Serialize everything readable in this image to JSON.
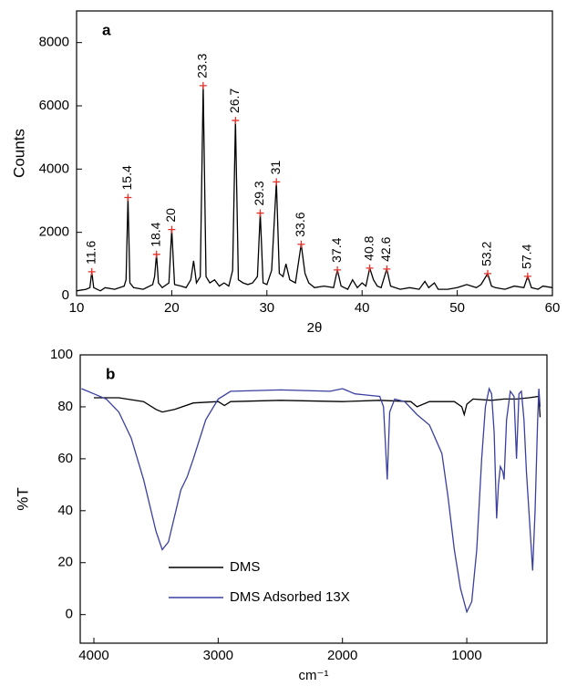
{
  "chart_data": [
    {
      "type": "line",
      "panel_label": "a",
      "x_label": "2θ",
      "y_label": "Counts",
      "xlim": [
        10,
        60
      ],
      "ylim": [
        0,
        9000
      ],
      "xticks": [
        10,
        20,
        30,
        40,
        50,
        60
      ],
      "yticks": [
        0,
        2000,
        4000,
        6000,
        8000
      ],
      "series": [
        {
          "color": "#000000",
          "x": [
            10,
            11,
            11.4,
            11.6,
            11.8,
            12.5,
            13,
            14,
            15,
            15.2,
            15.4,
            15.6,
            16,
            17,
            18,
            18.2,
            18.4,
            18.6,
            19,
            19.7,
            20,
            20.3,
            21,
            21.5,
            22,
            22.3,
            22.6,
            23,
            23.3,
            23.6,
            24,
            24.5,
            25,
            25.5,
            26,
            26.4,
            26.7,
            27,
            27.5,
            28,
            28.5,
            29,
            29.3,
            29.6,
            30,
            30.5,
            31,
            31.3,
            31.7,
            32,
            32.4,
            33,
            33.6,
            34,
            34.4,
            35,
            36,
            37,
            37.4,
            37.8,
            38.5,
            39,
            39.5,
            40,
            40.4,
            40.8,
            41.2,
            41.6,
            42,
            42.6,
            43,
            44,
            45,
            46,
            46.6,
            47,
            47.6,
            48,
            49,
            50,
            51,
            52,
            52.5,
            53.2,
            53.6,
            54,
            55,
            56,
            57,
            57.4,
            57.8,
            58.5,
            59,
            60
          ],
          "values": [
            150,
            200,
            250,
            754,
            250,
            150,
            250,
            200,
            300,
            500,
            3101,
            400,
            250,
            200,
            350,
            600,
            1304,
            400,
            250,
            400,
            2087,
            350,
            300,
            250,
            500,
            1100,
            400,
            600,
            6638,
            600,
            400,
            500,
            300,
            400,
            300,
            800,
            5536,
            500,
            400,
            350,
            400,
            600,
            2609,
            400,
            350,
            800,
            3594,
            700,
            600,
            1000,
            500,
            400,
            1623,
            700,
            400,
            250,
            300,
            250,
            812,
            300,
            200,
            500,
            250,
            400,
            300,
            870,
            500,
            300,
            250,
            840,
            300,
            200,
            250,
            200,
            450,
            250,
            400,
            200,
            200,
            250,
            350,
            250,
            350,
            696,
            300,
            250,
            200,
            300,
            250,
            609,
            250,
            200,
            300,
            250
          ]
        }
      ],
      "peak_color": "#e8302a",
      "peaks": [
        {
          "x": 11.6,
          "y": 754
        },
        {
          "x": 15.4,
          "y": 3101
        },
        {
          "x": 18.4,
          "y": 1304
        },
        {
          "x": 20,
          "y": 2087
        },
        {
          "x": 23.3,
          "y": 6638
        },
        {
          "x": 26.7,
          "y": 5536
        },
        {
          "x": 29.3,
          "y": 2609
        },
        {
          "x": 31,
          "y": 3594
        },
        {
          "x": 33.6,
          "y": 1623
        },
        {
          "x": 37.4,
          "y": 812
        },
        {
          "x": 40.8,
          "y": 870
        },
        {
          "x": 42.6,
          "y": 840
        },
        {
          "x": 53.2,
          "y": 696
        },
        {
          "x": 57.4,
          "y": 609
        }
      ]
    },
    {
      "type": "line",
      "panel_label": "b",
      "x_label": "cm⁻¹",
      "y_label": "%T",
      "xlim": [
        4110,
        355
      ],
      "ylim": [
        -11,
        100
      ],
      "xticks": [
        4000,
        3000,
        2000,
        1000
      ],
      "yticks": [
        0,
        20,
        40,
        60,
        80,
        100
      ],
      "legend": "lower left",
      "series": [
        {
          "name": "DMS",
          "color": "#000000",
          "x": [
            4000,
            3800,
            3600,
            3500,
            3450,
            3350,
            3200,
            3000,
            2950,
            2900,
            2500,
            2000,
            1700,
            1450,
            1400,
            1300,
            1100,
            1040,
            1020,
            1000,
            950,
            800,
            700,
            600,
            500,
            420,
            410
          ],
          "values": [
            83.5,
            83.5,
            82,
            79,
            78,
            79,
            81.5,
            82,
            80.5,
            82,
            82.5,
            82,
            82.5,
            82,
            80,
            82,
            82,
            80,
            77,
            81,
            83,
            82.5,
            83,
            83,
            83.5,
            84,
            76
          ]
        },
        {
          "name": "DMS Adsorbed 13X",
          "color": "#3a3fa0",
          "x": [
            4100,
            4000,
            3900,
            3800,
            3700,
            3600,
            3500,
            3450,
            3400,
            3350,
            3300,
            3250,
            3200,
            3100,
            3000,
            2900,
            2500,
            2100,
            2000,
            1900,
            1800,
            1700,
            1670,
            1640,
            1620,
            1580,
            1500,
            1400,
            1300,
            1200,
            1150,
            1100,
            1050,
            1000,
            960,
            920,
            880,
            850,
            820,
            800,
            780,
            760,
            745,
            730,
            710,
            700,
            680,
            650,
            620,
            600,
            580,
            560,
            540,
            520,
            500,
            470,
            450,
            430,
            420,
            410
          ],
          "values": [
            87,
            85,
            83,
            78,
            68,
            52,
            32,
            25,
            28,
            38,
            48,
            53,
            60,
            75,
            83,
            86,
            86.5,
            86,
            87,
            85,
            84.5,
            84,
            80,
            52,
            78,
            83,
            82,
            77,
            73,
            62,
            45,
            25,
            10,
            1,
            5,
            25,
            60,
            80,
            87,
            85,
            70,
            37,
            50,
            57,
            55,
            52,
            75,
            86,
            84,
            60,
            85,
            86,
            75,
            55,
            40,
            17,
            40,
            75,
            87,
            80
          ]
        }
      ]
    }
  ]
}
